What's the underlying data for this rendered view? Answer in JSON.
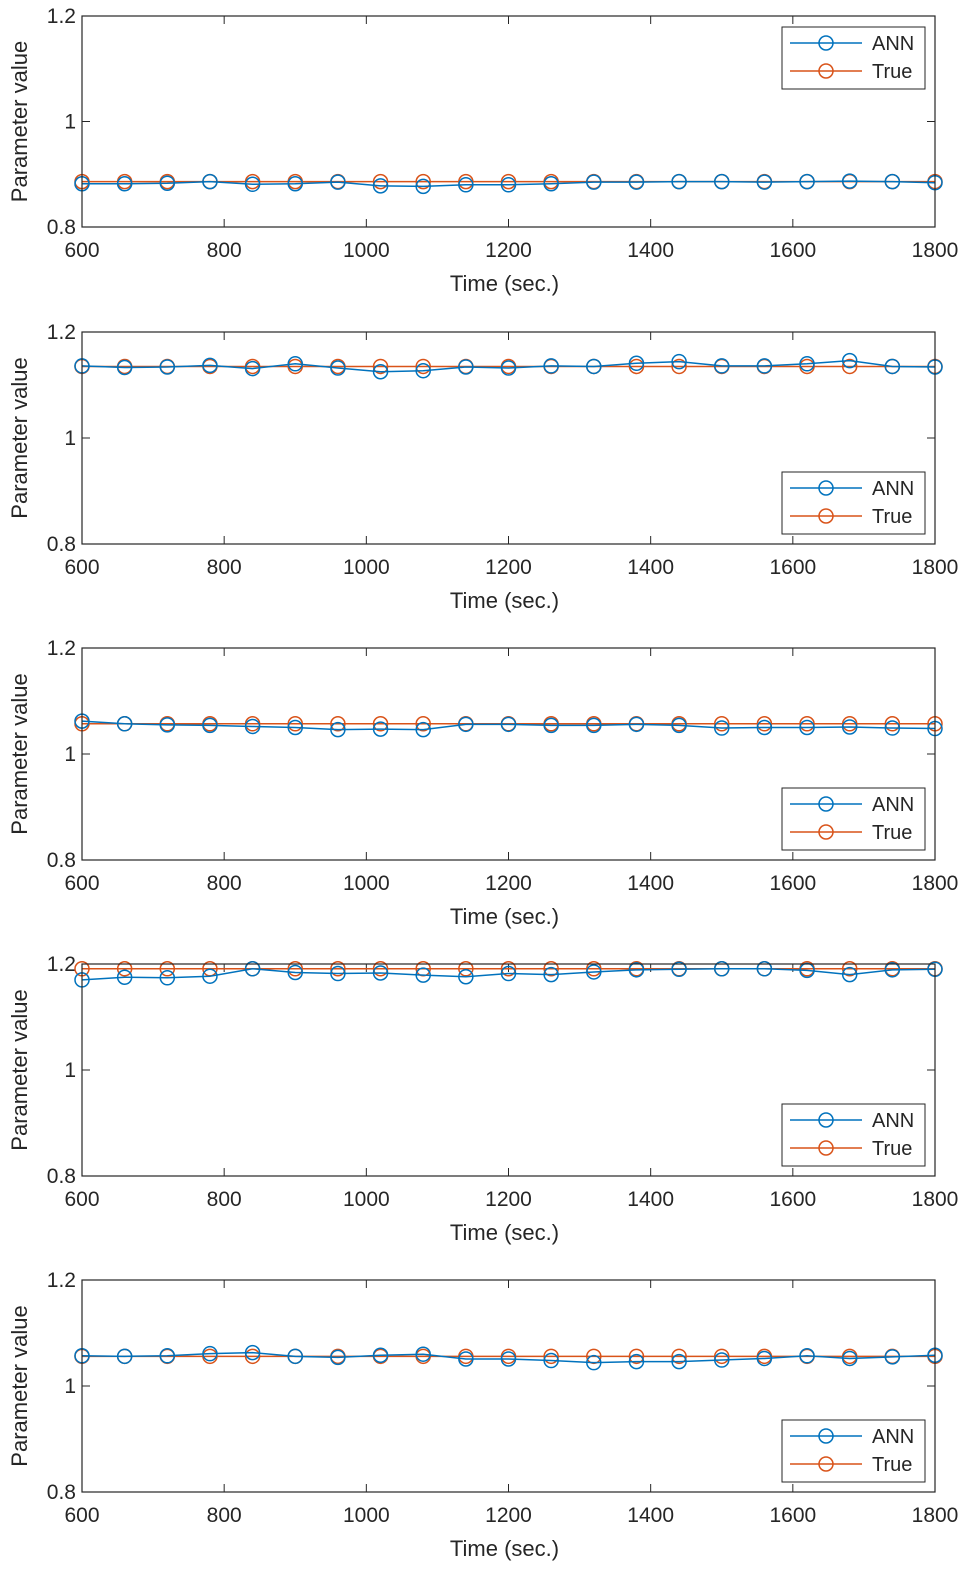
{
  "chart_data": [
    {
      "type": "line",
      "xlabel": "Time (sec.)",
      "ylabel": "Parameter value",
      "xlim": [
        600,
        1800
      ],
      "ylim": [
        0.8,
        1.2
      ],
      "xticks": [
        "600",
        "800",
        "1000",
        "1200",
        "1400",
        "1600",
        "1800"
      ],
      "yticks": [
        "0.8",
        "1",
        "1.2"
      ],
      "legend_position": "top-right",
      "x": [
        600,
        660,
        720,
        780,
        840,
        900,
        960,
        1020,
        1080,
        1140,
        1200,
        1260,
        1320,
        1380,
        1440,
        1500,
        1560,
        1620,
        1680,
        1740,
        1800
      ],
      "series": [
        {
          "name": "ANN",
          "color": "#0072BD",
          "values": [
            0.882,
            0.882,
            0.883,
            0.886,
            0.881,
            0.882,
            0.885,
            0.878,
            0.877,
            0.88,
            0.88,
            0.882,
            0.885,
            0.885,
            0.886,
            0.886,
            0.885,
            0.886,
            0.887,
            0.886,
            0.884
          ]
        },
        {
          "name": "True",
          "color": "#D95319",
          "values": [
            0.886,
            0.886,
            0.886,
            0.886,
            0.886,
            0.886,
            0.886,
            0.886,
            0.886,
            0.886,
            0.886,
            0.886,
            0.886,
            0.886,
            0.886,
            0.886,
            0.886,
            0.886,
            0.886,
            0.886,
            0.886
          ]
        }
      ]
    },
    {
      "type": "line",
      "xlabel": "Time (sec.)",
      "ylabel": "Parameter value",
      "xlim": [
        600,
        1800
      ],
      "ylim": [
        0.8,
        1.2
      ],
      "xticks": [
        "600",
        "800",
        "1000",
        "1200",
        "1400",
        "1600",
        "1800"
      ],
      "yticks": [
        "0.8",
        "1",
        "1.2"
      ],
      "legend_position": "bottom-right",
      "x": [
        600,
        660,
        720,
        780,
        840,
        900,
        960,
        1020,
        1080,
        1140,
        1200,
        1260,
        1320,
        1380,
        1440,
        1500,
        1560,
        1620,
        1680,
        1740,
        1800
      ],
      "series": [
        {
          "name": "ANN",
          "color": "#0072BD",
          "values": [
            1.136,
            1.133,
            1.134,
            1.137,
            1.131,
            1.14,
            1.132,
            1.125,
            1.127,
            1.134,
            1.132,
            1.136,
            1.135,
            1.141,
            1.144,
            1.136,
            1.136,
            1.14,
            1.146,
            1.135,
            1.134
          ]
        },
        {
          "name": "True",
          "color": "#D95319",
          "values": [
            1.135,
            1.135,
            1.135,
            1.135,
            1.135,
            1.135,
            1.135,
            1.135,
            1.135,
            1.135,
            1.135,
            1.135,
            1.135,
            1.135,
            1.135,
            1.135,
            1.135,
            1.135,
            1.135,
            1.135,
            1.135
          ]
        }
      ]
    },
    {
      "type": "line",
      "xlabel": "Time (sec.)",
      "ylabel": "Parameter value",
      "xlim": [
        600,
        1800
      ],
      "ylim": [
        0.8,
        1.2
      ],
      "xticks": [
        "600",
        "800",
        "1000",
        "1200",
        "1400",
        "1600",
        "1800"
      ],
      "yticks": [
        "0.8",
        "1",
        "1.2"
      ],
      "legend_position": "bottom-right",
      "x": [
        600,
        660,
        720,
        780,
        840,
        900,
        960,
        1020,
        1080,
        1140,
        1200,
        1260,
        1320,
        1380,
        1440,
        1500,
        1560,
        1620,
        1680,
        1740,
        1800
      ],
      "series": [
        {
          "name": "ANN",
          "color": "#0072BD",
          "values": [
            1.062,
            1.057,
            1.055,
            1.054,
            1.052,
            1.05,
            1.046,
            1.047,
            1.046,
            1.056,
            1.056,
            1.054,
            1.054,
            1.056,
            1.054,
            1.049,
            1.05,
            1.05,
            1.051,
            1.049,
            1.048
          ]
        },
        {
          "name": "True",
          "color": "#D95319",
          "values": [
            1.057,
            1.057,
            1.057,
            1.057,
            1.057,
            1.057,
            1.057,
            1.057,
            1.057,
            1.057,
            1.057,
            1.057,
            1.057,
            1.057,
            1.057,
            1.057,
            1.057,
            1.057,
            1.057,
            1.057,
            1.057
          ]
        }
      ]
    },
    {
      "type": "line",
      "xlabel": "Time (sec.)",
      "ylabel": "Parameter value",
      "xlim": [
        600,
        1800
      ],
      "ylim": [
        0.8,
        1.2
      ],
      "xticks": [
        "600",
        "800",
        "1000",
        "1200",
        "1400",
        "1600",
        "1800"
      ],
      "yticks": [
        "0.8",
        "1",
        "1.2"
      ],
      "legend_position": "bottom-right",
      "x": [
        600,
        660,
        720,
        780,
        840,
        900,
        960,
        1020,
        1080,
        1140,
        1200,
        1260,
        1320,
        1380,
        1440,
        1500,
        1560,
        1620,
        1680,
        1740,
        1800
      ],
      "series": [
        {
          "name": "ANN",
          "color": "#0072BD",
          "values": [
            1.17,
            1.175,
            1.174,
            1.177,
            1.191,
            1.184,
            1.182,
            1.183,
            1.179,
            1.176,
            1.182,
            1.18,
            1.185,
            1.189,
            1.19,
            1.191,
            1.191,
            1.188,
            1.18,
            1.189,
            1.19
          ]
        },
        {
          "name": "True",
          "color": "#D95319",
          "values": [
            1.191,
            1.191,
            1.191,
            1.191,
            1.191,
            1.191,
            1.191,
            1.191,
            1.191,
            1.191,
            1.191,
            1.191,
            1.191,
            1.191,
            1.191,
            1.191,
            1.191,
            1.191,
            1.191,
            1.191,
            1.191
          ]
        }
      ]
    },
    {
      "type": "line",
      "xlabel": "Time (sec.)",
      "ylabel": "Parameter value",
      "xlim": [
        600,
        1800
      ],
      "ylim": [
        0.8,
        1.2
      ],
      "xticks": [
        "600",
        "800",
        "1000",
        "1200",
        "1400",
        "1600",
        "1800"
      ],
      "yticks": [
        "0.8",
        "1",
        "1.2"
      ],
      "legend_position": "bottom-right",
      "x": [
        600,
        660,
        720,
        780,
        840,
        900,
        960,
        1020,
        1080,
        1140,
        1200,
        1260,
        1320,
        1380,
        1440,
        1500,
        1560,
        1620,
        1680,
        1740,
        1800
      ],
      "series": [
        {
          "name": "ANN",
          "color": "#0072BD",
          "values": [
            1.057,
            1.056,
            1.057,
            1.061,
            1.063,
            1.056,
            1.054,
            1.058,
            1.06,
            1.051,
            1.051,
            1.048,
            1.044,
            1.046,
            1.046,
            1.049,
            1.052,
            1.057,
            1.052,
            1.055,
            1.058
          ]
        },
        {
          "name": "True",
          "color": "#D95319",
          "values": [
            1.056,
            1.056,
            1.056,
            1.056,
            1.056,
            1.056,
            1.056,
            1.056,
            1.056,
            1.056,
            1.056,
            1.056,
            1.056,
            1.056,
            1.056,
            1.056,
            1.056,
            1.056,
            1.056,
            1.056,
            1.056
          ]
        }
      ]
    }
  ]
}
